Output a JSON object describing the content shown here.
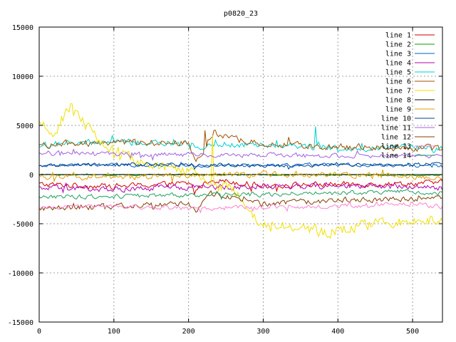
{
  "chart_data": {
    "type": "line",
    "title": "p0820_23",
    "xlabel": "",
    "ylabel": "",
    "xlim": [
      0,
      540
    ],
    "ylim": [
      -15000,
      15000
    ],
    "x_ticks": [
      0,
      100,
      200,
      300,
      400,
      500
    ],
    "y_ticks": [
      -15000,
      -10000,
      -5000,
      0,
      5000,
      10000,
      15000
    ],
    "grid": true,
    "legend_position": "top-right",
    "series": [
      {
        "name": "line 1",
        "color": "#d00000",
        "anchors": [
          [
            0,
            -1000
          ],
          [
            100,
            -1200
          ],
          [
            200,
            -900
          ],
          [
            210,
            -1500
          ],
          [
            230,
            -500
          ],
          [
            300,
            -1100
          ],
          [
            400,
            -1000
          ],
          [
            500,
            -900
          ],
          [
            540,
            -800
          ]
        ],
        "noise": 250,
        "spikes": [
          [
            208,
            -2000
          ]
        ]
      },
      {
        "name": "line 2",
        "color": "#00a000",
        "anchors": [
          [
            0,
            0
          ],
          [
            100,
            -50
          ],
          [
            200,
            0
          ],
          [
            300,
            -50
          ],
          [
            400,
            0
          ],
          [
            500,
            -100
          ],
          [
            540,
            -50
          ]
        ],
        "noise": 60,
        "spikes": []
      },
      {
        "name": "line 3",
        "color": "#0060c0",
        "anchors": [
          [
            0,
            900
          ],
          [
            100,
            1000
          ],
          [
            200,
            900
          ],
          [
            300,
            900
          ],
          [
            400,
            1000
          ],
          [
            500,
            900
          ],
          [
            540,
            800
          ]
        ],
        "noise": 150,
        "spikes": []
      },
      {
        "name": "line 4",
        "color": "#b000b0",
        "anchors": [
          [
            0,
            -1400
          ],
          [
            100,
            -1500
          ],
          [
            200,
            -1300
          ],
          [
            300,
            -1200
          ],
          [
            400,
            -1200
          ],
          [
            500,
            -1200
          ],
          [
            540,
            -1400
          ]
        ],
        "noise": 250,
        "spikes": []
      },
      {
        "name": "line 5",
        "color": "#00d0d0",
        "anchors": [
          [
            0,
            3000
          ],
          [
            100,
            3300
          ],
          [
            200,
            3100
          ],
          [
            210,
            2500
          ],
          [
            230,
            3200
          ],
          [
            300,
            3000
          ],
          [
            360,
            2900
          ],
          [
            400,
            2700
          ],
          [
            500,
            2800
          ],
          [
            540,
            2500
          ]
        ],
        "noise": 300,
        "spikes": [
          [
            370,
            4900
          ],
          [
            98,
            4000
          ]
        ]
      },
      {
        "name": "line 6",
        "color": "#a05000",
        "anchors": [
          [
            0,
            3000
          ],
          [
            100,
            3300
          ],
          [
            200,
            3200
          ],
          [
            210,
            1000
          ],
          [
            230,
            4000
          ],
          [
            300,
            3100
          ],
          [
            400,
            2800
          ],
          [
            500,
            2700
          ],
          [
            540,
            2600
          ]
        ],
        "noise": 300,
        "spikes": [
          [
            222,
            4500
          ],
          [
            235,
            4500
          ]
        ]
      },
      {
        "name": "line 7",
        "color": "#f0e000",
        "anchors": [
          [
            0,
            5000
          ],
          [
            20,
            4200
          ],
          [
            40,
            6800
          ],
          [
            60,
            5300
          ],
          [
            80,
            3500
          ],
          [
            110,
            2000
          ],
          [
            150,
            800
          ],
          [
            200,
            600
          ],
          [
            230,
            -1000
          ],
          [
            260,
            -1500
          ],
          [
            300,
            -5400
          ],
          [
            350,
            -5000
          ],
          [
            380,
            -6200
          ],
          [
            400,
            -5600
          ],
          [
            450,
            -5000
          ],
          [
            500,
            -4600
          ],
          [
            540,
            -4500
          ]
        ],
        "noise": 500,
        "spikes": [
          [
            43,
            7200
          ],
          [
            232,
            4000
          ]
        ]
      },
      {
        "name": "line 8",
        "color": "#000000",
        "anchors": [
          [
            0,
            0
          ],
          [
            540,
            0
          ]
        ],
        "noise": 0,
        "spikes": []
      },
      {
        "name": "line 9",
        "color": "#e0a000",
        "anchors": [
          [
            0,
            -200
          ],
          [
            100,
            -300
          ],
          [
            200,
            -100
          ],
          [
            300,
            0
          ],
          [
            400,
            0
          ],
          [
            500,
            -200
          ],
          [
            540,
            -300
          ]
        ],
        "noise": 250,
        "spikes": []
      },
      {
        "name": "line 10",
        "color": "#004090",
        "anchors": [
          [
            0,
            1000
          ],
          [
            100,
            1000
          ],
          [
            200,
            1000
          ],
          [
            300,
            900
          ],
          [
            400,
            1000
          ],
          [
            500,
            1000
          ],
          [
            540,
            1200
          ]
        ],
        "noise": 150,
        "spikes": []
      },
      {
        "name": "line 11",
        "color": "#a060e0",
        "anchors": [
          [
            0,
            2200
          ],
          [
            100,
            2100
          ],
          [
            200,
            2000
          ],
          [
            300,
            2000
          ],
          [
            400,
            1900
          ],
          [
            500,
            1900
          ],
          [
            540,
            1800
          ]
        ],
        "noise": 200,
        "spikes": []
      },
      {
        "name": "line 12",
        "color": "#804000",
        "anchors": [
          [
            0,
            -3500
          ],
          [
            100,
            -3200
          ],
          [
            200,
            -2900
          ],
          [
            210,
            -3800
          ],
          [
            230,
            -2000
          ],
          [
            300,
            -3000
          ],
          [
            400,
            -2600
          ],
          [
            500,
            -2500
          ],
          [
            540,
            -2300
          ]
        ],
        "noise": 250,
        "spikes": [
          [
            153,
            -3500
          ]
        ]
      },
      {
        "name": "line 13",
        "color": "#ff80d0",
        "anchors": [
          [
            0,
            -3300
          ],
          [
            100,
            -3300
          ],
          [
            200,
            -3400
          ],
          [
            300,
            -3300
          ],
          [
            400,
            -3200
          ],
          [
            500,
            -3000
          ],
          [
            540,
            -3300
          ]
        ],
        "noise": 200,
        "spikes": []
      },
      {
        "name": "line 14",
        "color": "#20a060",
        "anchors": [
          [
            0,
            -2300
          ],
          [
            100,
            -2200
          ],
          [
            200,
            -2100
          ],
          [
            300,
            -2000
          ],
          [
            400,
            -1900
          ],
          [
            500,
            -1700
          ],
          [
            540,
            -1900
          ]
        ],
        "noise": 200,
        "spikes": []
      }
    ]
  }
}
